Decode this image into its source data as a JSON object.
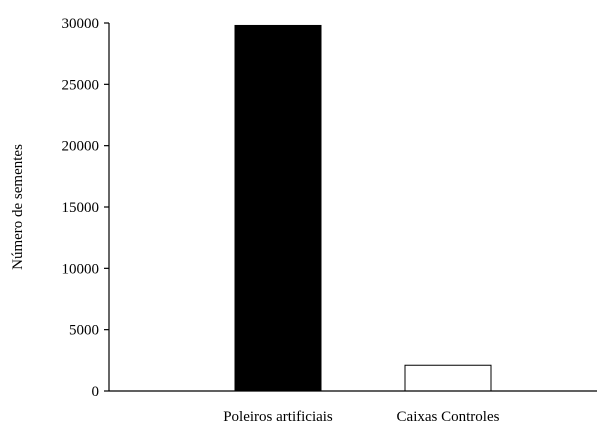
{
  "chart_data": {
    "type": "bar",
    "title": "",
    "xlabel": "",
    "ylabel": "Número de sementes",
    "categories": [
      "Poleiros artificiais",
      "Caixas Controles"
    ],
    "values": [
      29800,
      2100
    ],
    "bar_colors": [
      "#000000",
      "#ffffff"
    ],
    "ylim": [
      0,
      30000
    ],
    "yticks": [
      "0",
      "5000",
      "10000",
      "15000",
      "20000",
      "25000",
      "30000"
    ],
    "grid": false,
    "legend": "none"
  }
}
